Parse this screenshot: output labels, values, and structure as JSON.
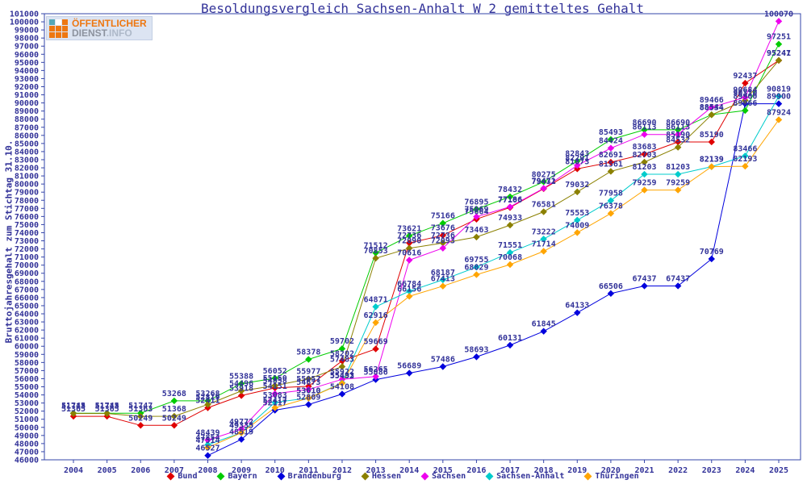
{
  "title": "Besoldungsvergleich Sachsen-Anhalt W 2 gemitteltes Gehalt",
  "logo": {
    "line1": "ÖFFENTLICHER",
    "line2a": "DIENST",
    "line2b": ".INFO",
    "square_colors": [
      "#55a8b8",
      "#ffffff",
      "#ee7711",
      "#ee7711",
      "#ee7711",
      "#ee7711",
      "#ee7711",
      "#ee7711",
      "#ee7711"
    ]
  },
  "colors": {
    "text": "#333399",
    "axis_border": "#3344aa",
    "background": "#ffffff"
  },
  "chart_data": {
    "type": "line",
    "title": "Besoldungsvergleich Sachsen-Anhalt W 2 gemitteltes Gehalt",
    "xlabel": "",
    "ylabel": "Bruttojahresgehalt zum Stichtag 31.10.",
    "x": [
      2004,
      2005,
      2006,
      2007,
      2008,
      2009,
      2010,
      2011,
      2012,
      2013,
      2014,
      2015,
      2016,
      2017,
      2018,
      2019,
      2020,
      2021,
      2022,
      2023,
      2024,
      2025
    ],
    "ylim": [
      46000,
      101000
    ],
    "ytick_step": 1000,
    "grid": false,
    "legend_position": "bottom",
    "series": [
      {
        "name": "Bund",
        "color": "#e00000",
        "values": [
          51365,
          51365,
          50249,
          50249,
          52411,
          53918,
          54858,
          55057,
          58202,
          59669,
          72736,
          73676,
          75664,
          77106,
          79432,
          81873,
          82691,
          83683,
          85190,
          85190,
          92437,
          95241
        ]
      },
      {
        "name": "Bayern",
        "color": "#00cc00",
        "values": [
          51745,
          51745,
          51747,
          53268,
          53268,
          55388,
          56052,
          58378,
          59702,
          71512,
          73621,
          75166,
          76895,
          78432,
          80275,
          82843,
          85493,
          86690,
          86690,
          88544,
          89066,
          97251
        ]
      },
      {
        "name": "Brandenburg",
        "color": "#0000dd",
        "values": [
          null,
          null,
          null,
          null,
          46527,
          48519,
          52117,
          52809,
          54108,
          55886,
          56689,
          57486,
          58693,
          60131,
          61845,
          64133,
          66506,
          67437,
          67437,
          70769,
          89900,
          89900
        ]
      },
      {
        "name": "Hessen",
        "color": "#8b8000",
        "values": [
          51713,
          51713,
          51363,
          51368,
          52819,
          54496,
          55150,
          55977,
          57483,
          70853,
          72090,
          72736,
          73463,
          74933,
          76581,
          79032,
          81561,
          82703,
          84532,
          88534,
          90310,
          95247
        ]
      },
      {
        "name": "Sachsen",
        "color": "#ee00ee",
        "values": [
          null,
          null,
          null,
          null,
          48439,
          49772,
          54151,
          54673,
          55922,
          56265,
          70616,
          72093,
          75969,
          77186,
          79471,
          82291,
          84424,
          86113,
          86113,
          89466,
          90684,
          100070
        ]
      },
      {
        "name": "Sachsen-Anhalt",
        "color": "#00cccc",
        "values": [
          null,
          null,
          null,
          null,
          47854,
          49335,
          53083,
          53610,
          55493,
          64871,
          66784,
          68187,
          69755,
          71551,
          73222,
          75553,
          77958,
          81203,
          81203,
          82139,
          83466,
          90819
        ]
      },
      {
        "name": "Thüringen",
        "color": "#ffa500",
        "values": [
          null,
          null,
          null,
          null,
          47514,
          49335,
          52417,
          53610,
          55432,
          62916,
          66156,
          67413,
          68829,
          70068,
          71714,
          74009,
          76378,
          79259,
          79259,
          82139,
          82193,
          87924
        ]
      }
    ]
  }
}
